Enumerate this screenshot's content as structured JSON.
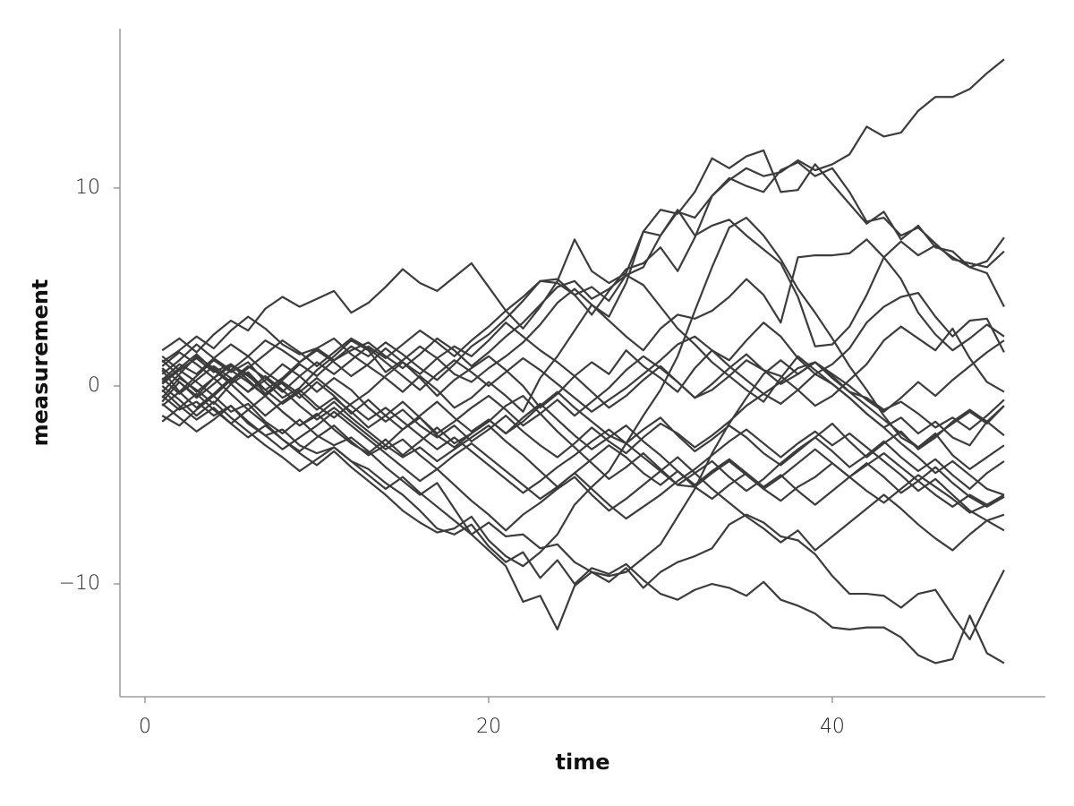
{
  "chart_data": {
    "type": "line",
    "xlabel": "time",
    "ylabel": "measurement",
    "color": "#3c3c3c",
    "x": [
      1,
      2,
      3,
      4,
      5,
      6,
      7,
      8,
      9,
      10,
      11,
      12,
      13,
      14,
      15,
      16,
      17,
      18,
      19,
      20,
      21,
      22,
      23,
      24,
      25,
      26,
      27,
      28,
      29,
      30,
      31,
      32,
      33,
      34,
      35,
      36,
      37,
      38,
      39,
      40,
      41,
      42,
      43,
      44,
      45,
      46,
      47,
      48,
      49,
      50
    ],
    "xlim": [
      -1.46,
      52.4
    ],
    "xticks": [
      0,
      20,
      40
    ],
    "ylim": [
      -15.7,
      18.05
    ],
    "yticks": [
      {
        "value": -10,
        "label": "−10"
      },
      0,
      10
    ],
    "series": [
      {
        "values": [
          1.2,
          1.8,
          2.5,
          1.9,
          2.8,
          3.5,
          2.9,
          2.1,
          1.6,
          1.9,
          1.3,
          1.8,
          2.2,
          1.5,
          0.9,
          1.6,
          2.4,
          1.8,
          1.0,
          1.7,
          2.5,
          3.2,
          4.1,
          5.0,
          5.3,
          4.4,
          4.9,
          5.6,
          6.0,
          7.6,
          8.8,
          8.5,
          9.6,
          10.4,
          11.0,
          10.6,
          10.8,
          11.4,
          10.9,
          11.2,
          11.7,
          13.1,
          12.6,
          12.8,
          13.9,
          14.6,
          14.6,
          15.0,
          15.8,
          16.5
        ]
      },
      {
        "values": [
          -0.5,
          -1.2,
          -0.8,
          -1.5,
          -1.0,
          -1.9,
          -2.5,
          -2.2,
          -3.0,
          -3.4,
          -3.1,
          -3.8,
          -4.2,
          -4.9,
          -5.5,
          -6.3,
          -7.2,
          -7.5,
          -7.0,
          -8.1,
          -8.9,
          -8.4,
          -9.7,
          -8.8,
          -10.0,
          -9.2,
          -9.5,
          -9.0,
          -9.8,
          -10.5,
          -10.8,
          -10.3,
          -10.0,
          -10.2,
          -10.6,
          -9.9,
          -10.8,
          -11.1,
          -11.5,
          -12.2,
          -12.3,
          -12.2,
          -12.2,
          -12.7,
          -13.6,
          -14.0,
          -13.8,
          -11.6,
          -13.5,
          -14.0
        ]
      },
      {
        "values": [
          -1.5,
          -2.0,
          -1.2,
          -0.5,
          -1.3,
          -0.9,
          -1.8,
          -2.4,
          -1.7,
          -2.5,
          -3.0,
          -2.6,
          -3.3,
          -4.1,
          -4.8,
          -5.5,
          -4.9,
          -6.2,
          -7.5,
          -8.3,
          -9.1,
          -10.9,
          -10.6,
          -12.3,
          -10.1,
          -9.4,
          -9.9,
          -9.2,
          -10.2,
          -9.4,
          -8.9,
          -8.6,
          -8.2,
          -7.0,
          -6.5,
          -6.9,
          -7.6,
          -7.8,
          -8.5,
          -9.6,
          -10.5,
          -10.5,
          -10.6,
          -11.2,
          -10.5,
          -10.3,
          -11.6,
          -12.8,
          -11.0,
          -9.3
        ]
      },
      {
        "values": [
          0.3,
          1.1,
          0.6,
          1.4,
          2.1,
          1.5,
          2.3,
          1.8,
          1.2,
          1.9,
          2.4,
          1.6,
          1.0,
          0.4,
          -0.3,
          0.5,
          -0.2,
          -1.1,
          -0.6,
          0.2,
          -0.5,
          -1.3,
          0.4,
          1.5,
          2.8,
          4.1,
          3.5,
          5.2,
          7.8,
          7.6,
          8.9,
          7.6,
          8.1,
          8.4,
          7.6,
          6.9,
          6.2,
          4.5,
          2.0,
          2.1,
          3.0,
          4.6,
          6.5,
          7.3,
          6.6,
          7.1,
          6.5,
          6.0,
          6.3,
          7.5
        ]
      },
      {
        "values": [
          -0.8,
          0.2,
          -0.5,
          0.4,
          1.0,
          0.6,
          -0.4,
          0.3,
          1.1,
          0.5,
          1.3,
          2.0,
          1.5,
          2.2,
          1.6,
          0.9,
          0.3,
          1.1,
          2.0,
          2.6,
          3.4,
          4.3,
          5.3,
          5.2,
          4.6,
          3.6,
          4.8,
          5.9,
          6.2,
          7.0,
          5.8,
          7.5,
          9.6,
          10.5,
          10.1,
          9.8,
          10.9,
          11.3,
          10.6,
          11.0,
          9.8,
          8.3,
          8.5,
          7.6,
          8.0,
          7.2,
          6.4,
          6.2,
          6.0,
          6.8
        ]
      },
      {
        "values": [
          1.8,
          2.4,
          1.7,
          2.6,
          3.3,
          2.8,
          3.9,
          4.5,
          4.0,
          4.4,
          4.8,
          3.7,
          4.2,
          5.0,
          5.9,
          5.2,
          4.8,
          5.5,
          6.2,
          5.0,
          3.8,
          2.9,
          4.0,
          5.3,
          7.4,
          5.8,
          5.2,
          5.7,
          7.8,
          8.9,
          8.7,
          9.8,
          11.5,
          11.0,
          11.6,
          11.9,
          9.8,
          9.9,
          11.2,
          10.2,
          9.2,
          8.2,
          8.8,
          7.4,
          8.1,
          7.0,
          6.8,
          6.0,
          5.7,
          4.0
        ]
      },
      {
        "values": [
          0.8,
          -0.3,
          0.5,
          1.3,
          0.7,
          1.2,
          0.2,
          -0.6,
          -0.1,
          0.8,
          1.5,
          2.3,
          1.8,
          0.7,
          1.3,
          2.0,
          1.4,
          0.6,
          0.2,
          0.9,
          1.5,
          2.2,
          3.1,
          4.2,
          4.9,
          4.1,
          3.3,
          2.5,
          1.8,
          2.9,
          3.6,
          3.4,
          3.8,
          4.5,
          5.4,
          4.6,
          3.2,
          6.5,
          6.6,
          6.6,
          6.7,
          7.4,
          6.5,
          5.4,
          3.7,
          2.6,
          1.8,
          2.4,
          3.1,
          2.5
        ]
      },
      {
        "values": [
          0.2,
          0.9,
          1.6,
          0.8,
          0.1,
          0.7,
          -0.2,
          0.4,
          1.2,
          1.8,
          1.2,
          0.5,
          1.1,
          1.9,
          1.2,
          0.4,
          -0.5,
          0.3,
          0.9,
          1.5,
          0.8,
          0.0,
          -1.1,
          -0.4,
          0.5,
          1.2,
          0.6,
          1.8,
          1.0,
          0.4,
          -0.3,
          0.9,
          1.8,
          1.3,
          2.3,
          3.2,
          2.5,
          1.4,
          0.6,
          1.1,
          1.9,
          3.2,
          4.0,
          4.5,
          4.7,
          3.5,
          2.5,
          3.3,
          3.4,
          1.7
        ]
      },
      {
        "values": [
          -0.6,
          0.4,
          -0.2,
          -0.9,
          0.1,
          -0.7,
          -1.5,
          -0.8,
          -0.2,
          -1.0,
          -1.6,
          -0.9,
          -0.3,
          0.5,
          1.2,
          0.6,
          1.4,
          2.0,
          1.5,
          2.3,
          3.2,
          2.5,
          1.8,
          1.2,
          0.5,
          -0.3,
          -1.1,
          -0.5,
          0.3,
          1.0,
          0.2,
          -0.6,
          -0.2,
          0.5,
          1.3,
          0.8,
          0.5,
          -0.2,
          -1.0,
          -0.5,
          0.3,
          1.1,
          2.3,
          3.0,
          2.4,
          1.8,
          2.9,
          1.4,
          0.2,
          -0.3
        ]
      },
      {
        "values": [
          1.5,
          0.8,
          1.4,
          0.7,
          1.1,
          0.3,
          -0.5,
          0.2,
          -0.4,
          -1.2,
          -0.6,
          -1.3,
          -2.1,
          -1.5,
          -0.8,
          -1.6,
          -2.4,
          -1.8,
          -1.1,
          -0.5,
          -1.2,
          -2.0,
          -1.4,
          -0.7,
          -1.5,
          -0.8,
          -0.1,
          0.8,
          1.5,
          0.9,
          0.2,
          -0.6,
          0.1,
          0.9,
          1.6,
          0.8,
          0.1,
          0.6,
          1.2,
          0.5,
          -0.3,
          -0.6,
          -1.2,
          -0.8,
          -1.4,
          -2.1,
          -1.6,
          -2.2,
          -1.5,
          -0.7
        ]
      },
      {
        "values": [
          -1.0,
          -0.3,
          -1.1,
          -0.4,
          0.4,
          -0.3,
          0.3,
          1.1,
          0.5,
          -0.3,
          0.4,
          -0.2,
          -1.1,
          -1.8,
          -1.2,
          -2.0,
          -2.6,
          -2.0,
          -2.8,
          -2.2,
          -1.5,
          -2.3,
          -3.0,
          -3.6,
          -2.9,
          -2.1,
          -2.8,
          -3.4,
          -2.6,
          -1.9,
          -2.4,
          -3.1,
          -2.5,
          -1.8,
          -1.0,
          -0.4,
          -0.9,
          -0.2,
          0.6,
          0.1,
          -0.6,
          -1.4,
          -2.1,
          -1.6,
          -2.4,
          -1.8,
          -2.6,
          -3.0,
          -1.8,
          -1.0
        ]
      },
      {
        "values": [
          0.6,
          1.3,
          2.1,
          1.4,
          0.8,
          1.5,
          0.7,
          0.1,
          -0.6,
          0.2,
          -0.5,
          -1.4,
          -0.7,
          -1.5,
          -2.2,
          -1.6,
          -2.5,
          -3.1,
          -2.4,
          -1.7,
          -2.4,
          -1.8,
          -1.0,
          -0.3,
          -1.1,
          -1.8,
          -2.5,
          -2.9,
          -2.2,
          -1.6,
          -2.5,
          -3.3,
          -2.7,
          -2.0,
          -2.6,
          -3.4,
          -4.0,
          -3.3,
          -2.6,
          -1.9,
          -2.8,
          -3.6,
          -2.9,
          -2.3,
          -3.2,
          -2.6,
          -1.8,
          -1.2,
          -1.8,
          -2.5
        ]
      },
      {
        "values": [
          -0.2,
          -1.0,
          -1.7,
          -1.1,
          -1.9,
          -1.2,
          -0.5,
          -1.3,
          -2.0,
          -1.4,
          -2.2,
          -2.9,
          -3.4,
          -2.7,
          -3.5,
          -2.8,
          -2.1,
          -2.9,
          -2.4,
          -1.8,
          -1.0,
          -0.5,
          -1.4,
          -2.3,
          -3.1,
          -3.9,
          -4.7,
          -4.1,
          -3.4,
          -4.2,
          -5.0,
          -4.4,
          -3.8,
          -4.6,
          -5.3,
          -4.7,
          -3.9,
          -3.2,
          -2.6,
          -3.3,
          -4.1,
          -3.5,
          -2.8,
          -3.6,
          -4.3,
          -3.7,
          -4.5,
          -5.2,
          -4.4,
          -3.8
        ]
      },
      {
        "values": [
          0.9,
          0.2,
          -0.6,
          0.1,
          0.8,
          0.2,
          -0.5,
          -1.3,
          -2.0,
          -1.5,
          -0.8,
          -1.6,
          -2.3,
          -3.0,
          -3.6,
          -3.1,
          -3.8,
          -3.2,
          -2.6,
          -2.0,
          -2.8,
          -3.5,
          -4.3,
          -5.1,
          -4.4,
          -3.7,
          -3.0,
          -3.6,
          -4.4,
          -5.0,
          -4.3,
          -5.1,
          -5.7,
          -5.0,
          -4.4,
          -5.2,
          -5.8,
          -5.1,
          -4.6,
          -3.9,
          -4.6,
          -5.3,
          -5.9,
          -5.2,
          -4.5,
          -5.1,
          -5.7,
          -6.4,
          -6.0,
          -5.5
        ]
      },
      {
        "values": [
          -1.8,
          -1.1,
          -0.4,
          -1.2,
          -1.9,
          -2.6,
          -2.0,
          -2.7,
          -3.3,
          -2.6,
          -2.0,
          -2.8,
          -3.5,
          -3.0,
          -2.2,
          -1.5,
          -0.8,
          -1.6,
          -2.3,
          -1.7,
          -2.4,
          -1.6,
          -0.9,
          -1.7,
          -2.5,
          -3.2,
          -2.6,
          -2.0,
          -2.8,
          -3.5,
          -4.3,
          -5.0,
          -4.3,
          -3.7,
          -4.4,
          -5.1,
          -4.5,
          -5.3,
          -6.0,
          -5.3,
          -4.6,
          -3.9,
          -4.6,
          -5.4,
          -4.8,
          -4.1,
          -4.9,
          -5.6,
          -6.1,
          -5.6
        ]
      },
      {
        "values": [
          0.4,
          -0.4,
          0.3,
          1.0,
          0.4,
          -0.3,
          0.5,
          -0.2,
          -1.0,
          -1.7,
          -1.1,
          -1.8,
          -2.5,
          -3.2,
          -2.7,
          -3.5,
          -4.2,
          -5.0,
          -5.8,
          -6.5,
          -7.3,
          -6.5,
          -5.9,
          -5.2,
          -4.6,
          -5.5,
          -6.3,
          -5.7,
          -5.0,
          -4.3,
          -3.6,
          -4.4,
          -5.2,
          -5.9,
          -6.6,
          -7.2,
          -7.9,
          -7.3,
          -8.3,
          -7.6,
          -6.9,
          -6.2,
          -5.5,
          -6.2,
          -7.0,
          -7.7,
          -8.3,
          -7.5,
          -6.8,
          -6.5
        ]
      },
      {
        "values": [
          -0.9,
          -1.6,
          -2.3,
          -1.7,
          -1.0,
          -1.8,
          -2.5,
          -3.2,
          -2.6,
          -2.0,
          -1.3,
          -2.0,
          -2.7,
          -3.4,
          -4.1,
          -4.8,
          -4.2,
          -3.5,
          -2.9,
          -3.6,
          -4.3,
          -5.0,
          -5.7,
          -5.1,
          -4.4,
          -5.2,
          -6.0,
          -6.7,
          -6.1,
          -5.5,
          -4.8,
          -4.2,
          -3.5,
          -2.8,
          -2.2,
          -2.9,
          -3.6,
          -2.9,
          -2.3,
          -3.0,
          -2.4,
          -3.1,
          -3.8,
          -4.5,
          -5.3,
          -4.7,
          -5.5,
          -6.3,
          -6.8,
          -7.3
        ]
      },
      {
        "values": [
          0.1,
          0.8,
          0.2,
          -0.5,
          0.3,
          1.0,
          0.4,
          -0.3,
          0.5,
          1.2,
          0.6,
          1.3,
          2.0,
          1.4,
          2.1,
          2.8,
          2.2,
          1.5,
          2.3,
          3.0,
          3.8,
          4.5,
          5.3,
          5.4,
          4.6,
          5.0,
          4.3,
          5.6,
          5.1,
          4.0,
          2.9,
          2.1,
          1.2,
          0.5,
          -0.2,
          -0.8,
          0.4,
          1.5,
          0.8,
          0.1,
          -0.6,
          -1.4,
          -2.1,
          -2.9,
          -3.6,
          -4.4,
          -3.8,
          -4.5,
          -5.2,
          -5.5
        ]
      },
      {
        "values": [
          1.3,
          0.5,
          -0.3,
          0.4,
          -0.4,
          -1.2,
          -1.9,
          -2.7,
          -3.4,
          -4.0,
          -3.3,
          -4.1,
          -4.8,
          -5.5,
          -6.3,
          -6.9,
          -7.4,
          -7.2,
          -6.6,
          -7.8,
          -8.6,
          -9.1,
          -8.4,
          -7.5,
          -6.0,
          -5.1,
          -4.3,
          -2.9,
          -1.5,
          -0.2,
          1.5,
          3.8,
          6.0,
          8.0,
          8.5,
          7.6,
          6.4,
          4.9,
          3.7,
          2.4,
          1.0,
          -0.2,
          -1.5,
          -2.6,
          -3.1,
          -2.4,
          -3.5,
          -4.2,
          -3.6,
          -3.0
        ]
      },
      {
        "values": [
          -0.3,
          0.6,
          1.5,
          0.9,
          0.2,
          0.9,
          1.6,
          2.3,
          1.7,
          1.0,
          1.7,
          2.4,
          1.9,
          1.2,
          0.5,
          -0.2,
          0.6,
          1.3,
          0.7,
          0.0,
          0.7,
          1.4,
          0.8,
          0.1,
          -0.6,
          -1.3,
          -0.7,
          -0.1,
          0.6,
          1.3,
          2.1,
          2.5,
          1.8,
          1.0,
          0.3,
          -0.4,
          0.2,
          0.9,
          1.2,
          0.6,
          0.0,
          -0.7,
          -1.3,
          -0.6,
          0.2,
          -0.5,
          0.3,
          1.0,
          1.7,
          2.3
        ]
      },
      {
        "values": [
          0.0,
          -0.7,
          -1.5,
          -0.8,
          -1.6,
          -2.3,
          -3.0,
          -3.6,
          -4.3,
          -3.7,
          -3.1,
          -3.8,
          -4.5,
          -5.2,
          -4.6,
          -5.4,
          -6.1,
          -6.8,
          -7.5,
          -6.9,
          -7.6,
          -7.5,
          -8.2,
          -8.0,
          -8.9,
          -9.4,
          -9.6,
          -9.4,
          -8.7,
          -8.0,
          -6.6,
          -5.2,
          -3.4,
          -1.9,
          -0.6,
          0.6,
          1.3,
          0.6,
          1.2,
          0.4,
          -0.3,
          -1.0,
          -1.7,
          -2.4,
          -3.1,
          -2.5,
          -1.9,
          -1.3,
          -1.9,
          -1.0
        ]
      },
      {
        "values": [
          1.0,
          1.7,
          1.1,
          0.4,
          1.1,
          0.5,
          -0.2,
          -0.9,
          -0.3,
          0.4,
          -0.3,
          -1.0,
          -1.7,
          -1.1,
          -1.8,
          -2.5,
          -3.2,
          -2.6,
          -3.3,
          -4.0,
          -4.7,
          -5.4,
          -4.8,
          -4.1,
          -3.5,
          -2.8,
          -2.2,
          -2.9,
          -3.6,
          -4.3,
          -5.0,
          -5.1,
          -4.4,
          -3.8,
          -4.5,
          -5.2,
          -4.6,
          -3.9,
          -3.2,
          -3.9,
          -4.6,
          -4.0,
          -3.4,
          -4.1,
          -4.8,
          -5.5,
          -6.1,
          -5.5,
          -6.0,
          -5.6
        ]
      }
    ]
  }
}
